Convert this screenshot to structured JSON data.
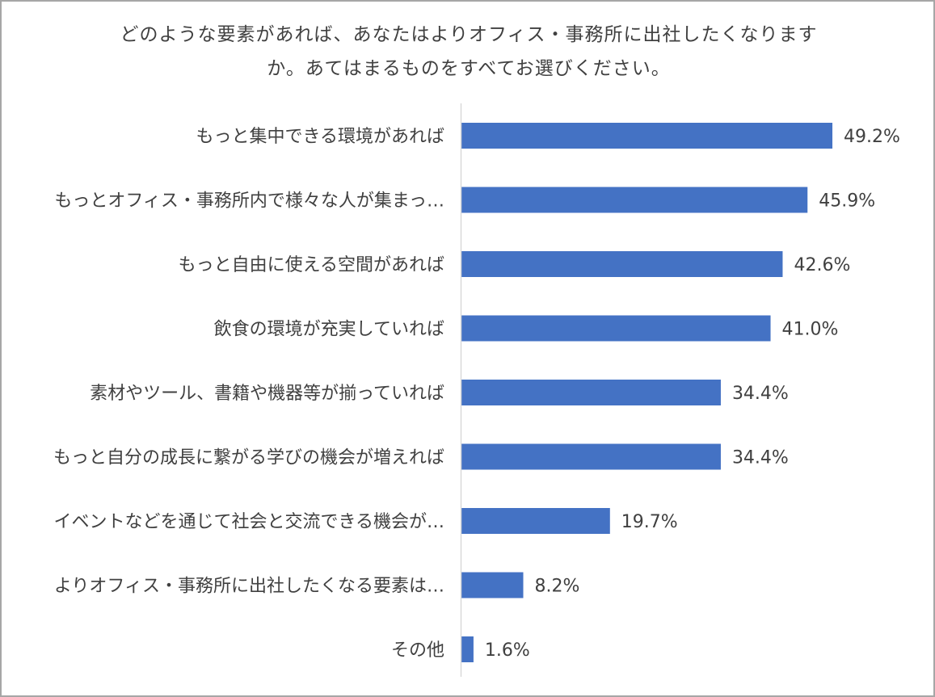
{
  "chart_data": {
    "type": "bar",
    "orientation": "horizontal",
    "title_lines": [
      "どのような要素があれば、あなたはよりオフィス・事務所に出社したくなります",
      "か。あてはまるものをすべてお選びください。"
    ],
    "categories": [
      "もっと集中できる環境があれば",
      "もっとオフィス・事務所内で様々な人が集まっ…",
      "もっと自由に使える空間があれば",
      "飲食の環境が充実していれば",
      "素材やツール、書籍や機器等が揃っていれば",
      "もっと自分の成長に繋がる学びの機会が増えれば",
      "イベントなどを通じて社会と交流できる機会が…",
      "よりオフィス・事務所に出社したくなる要素は…",
      "その他"
    ],
    "values": [
      49.2,
      45.9,
      42.6,
      41.0,
      34.4,
      34.4,
      19.7,
      8.2,
      1.6
    ],
    "value_labels": [
      "49.2%",
      "45.9%",
      "42.6%",
      "41.0%",
      "34.4%",
      "34.4%",
      "19.7%",
      "8.2%",
      "1.6%"
    ],
    "xlim": [
      0,
      100
    ],
    "grid": false,
    "legend": "none",
    "bar_color": "#4472c4",
    "axis_color": "#d9d9d9",
    "text_color": "#404040",
    "frame_color": "#a6a6a6"
  }
}
